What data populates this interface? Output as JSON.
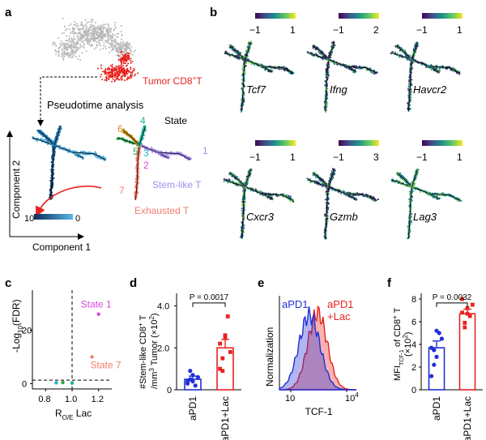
{
  "panels": {
    "a": {
      "label": "a",
      "tumor_label_main": "Tumor CD8",
      "tumor_label_sup": "+",
      "tumor_label_tail": "T",
      "pseudotime_label": "Pseudotime analysis",
      "ylabel": "Component 2",
      "xlabel": "Component 1",
      "colorbar_max": "10",
      "colorbar_min": "0",
      "state_title": "State",
      "states": [
        "1",
        "2",
        "3",
        "4",
        "5",
        "6",
        "7"
      ],
      "stem_label": "Stem-like T",
      "exhausted_label": "Exhausted T",
      "colors": {
        "tumor": "#e8231f",
        "grey": "#b8b8b8",
        "state1": "#a58cf0",
        "state2": "#d44ad8",
        "state3": "#1fb3c8",
        "state4": "#1fb39a",
        "state5": "#28a84a",
        "state6": "#c9951e",
        "state7": "#f47a6e"
      }
    },
    "b": {
      "label": "b",
      "genes": [
        {
          "name": "Tcf7",
          "cmin": "−1",
          "cmax": "1"
        },
        {
          "name": "Ifng",
          "cmin": "−1",
          "cmax": "2"
        },
        {
          "name": "Havcr2",
          "cmin": "−1",
          "cmax": "1"
        },
        {
          "name": "Cxcr3",
          "cmin": "−1",
          "cmax": "1"
        },
        {
          "name": "Gzmb",
          "cmin": "−1",
          "cmax": "3"
        },
        {
          "name": "Lag3",
          "cmin": "−1",
          "cmax": "1"
        }
      ]
    },
    "c": {
      "label": "c",
      "ylabel_main": "-Log",
      "ylabel_sub": "10",
      "ylabel_tail": "(FDR)",
      "xlabel_main": "R",
      "xlabel_sub": "O/E",
      "xlabel_tail": " Lac",
      "xticks": [
        "0.8",
        "1.0",
        "1.2"
      ],
      "yticks": [
        "0",
        "20"
      ],
      "annotations": [
        "State 1",
        "State 7"
      ]
    },
    "d": {
      "label": "d",
      "ylabel_line1": "#Stem-like CD8",
      "ylabel_line1_sup": "+",
      "ylabel_line1_tail": " T",
      "ylabel_line2": "/mm",
      "ylabel_line2_sup": "3",
      "ylabel_line2_tail": " Tumor (×10",
      "ylabel_line2_sup2": "2",
      "ylabel_line2_end": ")",
      "yticks": [
        "0",
        "2.0",
        "4.0"
      ],
      "pvalue": "P = 0.0017",
      "categories": [
        "aPD1",
        "aPD1+Lac"
      ]
    },
    "e": {
      "label": "e",
      "ylabel": "Normalization",
      "xlabel": "TCF-1",
      "xtick_10": "10",
      "xtick_exp": "4",
      "legend_a": "aPD1",
      "legend_b1": "aPD1",
      "legend_b2": "+Lac"
    },
    "f": {
      "label": "f",
      "ylabel_line1_main": "MFI",
      "ylabel_line1_sub": "TCF-1",
      "ylabel_line1_tail": " of CD8",
      "ylabel_line1_sup": "+",
      "ylabel_line1_end": " T",
      "ylabel_line2": "(×10",
      "ylabel_line2_sup": "2",
      "ylabel_line2_end": ")",
      "yticks": [
        "0",
        "2",
        "4",
        "6",
        "8"
      ],
      "pvalue": "P = 0.0032",
      "categories": [
        "aPD1",
        "aPD1+Lac"
      ]
    }
  },
  "chart_data": [
    {
      "type": "scatter",
      "panel": "c",
      "xlabel": "R O/E Lac",
      "ylabel": "-Log10(FDR)",
      "xlim": [
        0.7,
        1.3
      ],
      "ylim": [
        -2,
        35
      ],
      "x": [
        1.2,
        1.15,
        0.93,
        0.88,
        1.0
      ],
      "y": [
        26,
        10,
        0.4,
        0.3,
        0.2
      ],
      "point_colors": [
        "#d44ad8",
        "#f47a6e",
        "#28a84a",
        "#1fb3c8",
        "#1fb39a"
      ]
    },
    {
      "type": "bar",
      "panel": "d",
      "categories": [
        "aPD1",
        "aPD1+Lac"
      ],
      "values": [
        0.5,
        2.0
      ],
      "errors": [
        0.15,
        0.4
      ],
      "ylim": [
        0,
        4.6
      ],
      "pvalue": "P = 0.0017",
      "points": [
        [
          0.3,
          0.5,
          0.7,
          0.2,
          0.6,
          0.4,
          0.9,
          0.4
        ],
        [
          1.0,
          1.5,
          2.5,
          3.5,
          1.8,
          2.2,
          0.9,
          2.6
        ]
      ],
      "colors": [
        "#1f2fd8",
        "#e8231f"
      ]
    },
    {
      "type": "area",
      "panel": "e",
      "xlabel": "TCF-1",
      "ylabel": "Normalization",
      "series": [
        {
          "name": "aPD1"
        },
        {
          "name": "aPD1+Lac"
        }
      ],
      "colors": [
        "#1f2fd8",
        "#e8231f"
      ]
    },
    {
      "type": "bar",
      "panel": "f",
      "categories": [
        "aPD1",
        "aPD1+Lac"
      ],
      "values": [
        3.7,
        6.7
      ],
      "errors": [
        0.6,
        0.4
      ],
      "ylim": [
        0,
        8.5
      ],
      "pvalue": "P = 0.0032",
      "points": [
        [
          3.7,
          2.2,
          5.2,
          5.0,
          4.5,
          1.2,
          3.5,
          2.9
        ],
        [
          6.8,
          5.5,
          7.2,
          6.5,
          7.5,
          8.0,
          5.9,
          6.7
        ]
      ],
      "colors": [
        "#1f2fd8",
        "#e8231f"
      ]
    }
  ]
}
